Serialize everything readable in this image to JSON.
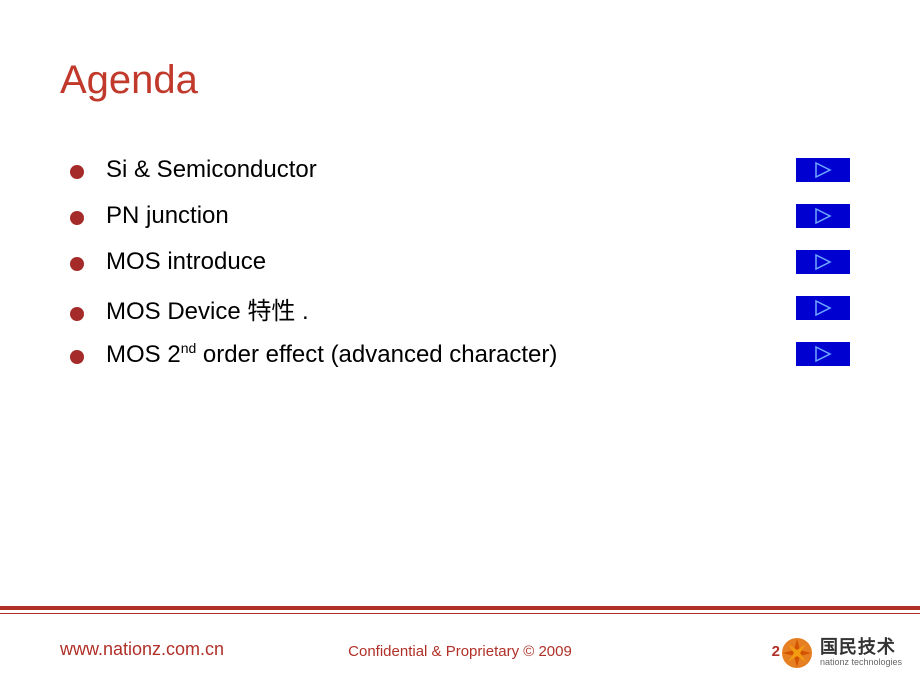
{
  "colors": {
    "accent": "#c0392b",
    "bullet": "#a52a2a",
    "button_bg": "#0000d0",
    "button_stroke": "#6fa8ff",
    "footer_text": "#b03028",
    "line": "#b03028"
  },
  "title": "Agenda",
  "items": [
    {
      "text": "Si & Semiconductor",
      "has_sup": false
    },
    {
      "text": "PN junction",
      "has_sup": false
    },
    {
      "text": "MOS introduce",
      "has_sup": false
    },
    {
      "text": "MOS Device 特性 .",
      "has_sup": false
    },
    {
      "pre": "MOS 2",
      "sup": "nd",
      "post": " order effect (advanced character)",
      "has_sup": true
    }
  ],
  "footer": {
    "url": "www.nationz.com.cn",
    "confidential": "Confidential  & Proprietary  © 2009",
    "page": "2"
  },
  "logo": {
    "cn": "国民技术",
    "en": "nationz technologies"
  }
}
